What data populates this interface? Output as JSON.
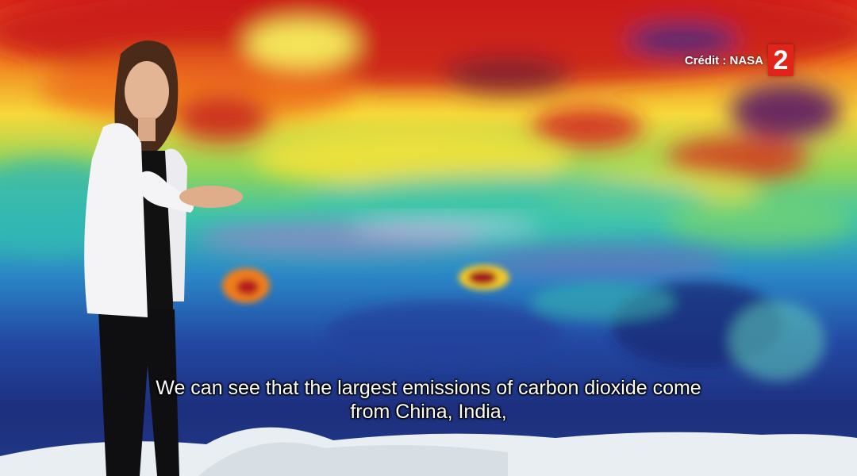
{
  "broadcast": {
    "credit_text": "Crédit : NASA",
    "channel_logo": "2",
    "logo_color": "#e2231a"
  },
  "subtitle": {
    "line1": "We can see that the largest emissions of carbon dioxide come",
    "line2": "from China, India,"
  },
  "scene": {
    "description_colors": [
      "#d7141c",
      "#f28a1d",
      "#f5e63a",
      "#3cc9b0",
      "#2b6fc4",
      "#1e2d7a",
      "#5b2a6e",
      "#e8eef2"
    ]
  }
}
